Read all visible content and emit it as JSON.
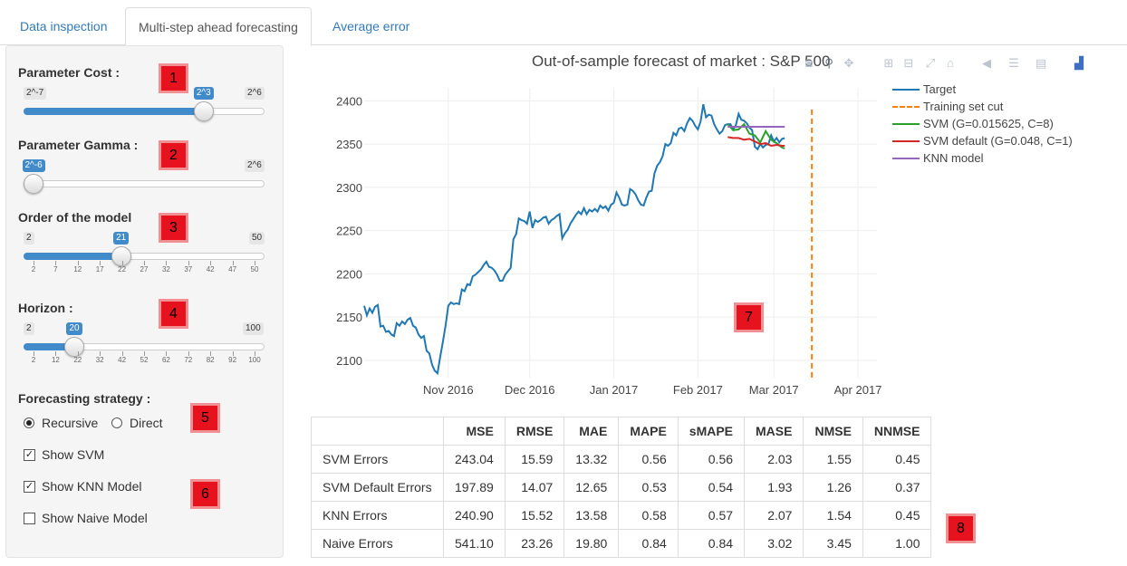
{
  "tabs": [
    {
      "label": "Data inspection"
    },
    {
      "label": "Multi-step ahead forecasting"
    },
    {
      "label": "Average error"
    }
  ],
  "sidebar": {
    "cost": {
      "label": "Parameter Cost :",
      "min": "2^-7",
      "max": "2^6",
      "value": "2^3",
      "fraction": 0.77
    },
    "gamma": {
      "label": "Parameter Gamma :",
      "min": "2^-6",
      "max": "2^6",
      "value": "2^-6",
      "fraction": 0.0
    },
    "order": {
      "label": "Order of the model",
      "min": "2",
      "max": "50",
      "value": "21",
      "fraction": 0.396,
      "ticks": [
        "2",
        "7",
        "12",
        "17",
        "22",
        "27",
        "32",
        "37",
        "42",
        "47",
        "50"
      ]
    },
    "horizon": {
      "label": "Horizon :",
      "min": "2",
      "max": "100",
      "value": "20",
      "fraction": 0.184,
      "ticks": [
        "2",
        "12",
        "22",
        "32",
        "42",
        "52",
        "62",
        "72",
        "82",
        "92",
        "100"
      ]
    },
    "strategy": {
      "label": "Forecasting strategy :",
      "options": [
        "Recursive",
        "Direct"
      ],
      "selected": "Recursive"
    },
    "show_svm": {
      "label": "Show SVM",
      "checked": true
    },
    "show_knn": {
      "label": "Show KNN Model",
      "checked": true
    },
    "show_naive": {
      "label": "Show Naive Model",
      "checked": false
    }
  },
  "badges": [
    "1",
    "2",
    "3",
    "4",
    "5",
    "6",
    "7",
    "8"
  ],
  "chart_data": {
    "type": "line",
    "title": "Out-of-sample forecast of market : S&P 500",
    "x_ticks": [
      "Nov 2016",
      "Dec 2016",
      "Jan 2017",
      "Feb 2017",
      "Mar 2017",
      "Apr 2017"
    ],
    "y_ticks": [
      "2100",
      "2150",
      "2200",
      "2250",
      "2300",
      "2350",
      "2400"
    ],
    "ylim": [
      2080,
      2415
    ],
    "x_range_days": [
      0,
      189
    ],
    "x_tick_days": [
      31,
      61,
      92,
      123,
      151,
      182
    ],
    "cut_day": 165,
    "legend_position": "top-right",
    "series": [
      {
        "name": "Target",
        "color": "#1f77b4",
        "dash": "solid",
        "points": [
          [
            0,
            2163
          ],
          [
            1,
            2152
          ],
          [
            2,
            2160
          ],
          [
            3,
            2155
          ],
          [
            4,
            2162
          ],
          [
            5,
            2164
          ],
          [
            6,
            2139
          ],
          [
            7,
            2140
          ],
          [
            8,
            2133
          ],
          [
            9,
            2134
          ],
          [
            10,
            2130
          ],
          [
            11,
            2128
          ],
          [
            12,
            2143
          ],
          [
            13,
            2140
          ],
          [
            14,
            2145
          ],
          [
            15,
            2142
          ],
          [
            16,
            2147
          ],
          [
            17,
            2149
          ],
          [
            18,
            2140
          ],
          [
            19,
            2138
          ],
          [
            20,
            2130
          ],
          [
            21,
            2126
          ],
          [
            22,
            2128
          ],
          [
            23,
            2111
          ],
          [
            24,
            2108
          ],
          [
            25,
            2095
          ],
          [
            26,
            2088
          ],
          [
            27,
            2085
          ],
          [
            28,
            2104
          ],
          [
            29,
            2121
          ],
          [
            30,
            2140
          ],
          [
            31,
            2163
          ],
          [
            32,
            2167
          ],
          [
            33,
            2165
          ],
          [
            34,
            2166
          ],
          [
            35,
            2165
          ],
          [
            36,
            2182
          ],
          [
            37,
            2180
          ],
          [
            38,
            2188
          ],
          [
            39,
            2187
          ],
          [
            40,
            2197
          ],
          [
            41,
            2199
          ],
          [
            42,
            2202
          ],
          [
            43,
            2205
          ],
          [
            44,
            2210
          ],
          [
            45,
            2214
          ],
          [
            46,
            2208
          ],
          [
            47,
            2207
          ],
          [
            48,
            2204
          ],
          [
            49,
            2199
          ],
          [
            50,
            2192
          ],
          [
            51,
            2192
          ],
          [
            52,
            2199
          ],
          [
            53,
            2203
          ],
          [
            54,
            2207
          ],
          [
            55,
            2240
          ],
          [
            56,
            2246
          ],
          [
            57,
            2264
          ],
          [
            58,
            2262
          ],
          [
            59,
            2261
          ],
          [
            60,
            2258
          ],
          [
            61,
            2272
          ],
          [
            62,
            2253
          ],
          [
            63,
            2262
          ],
          [
            64,
            2260
          ],
          [
            65,
            2262
          ],
          [
            66,
            2265
          ],
          [
            67,
            2266
          ],
          [
            68,
            2258
          ],
          [
            69,
            2262
          ],
          [
            70,
            2264
          ],
          [
            71,
            2267
          ],
          [
            72,
            2269
          ],
          [
            73,
            2241
          ],
          [
            74,
            2247
          ],
          [
            75,
            2251
          ],
          [
            76,
            2258
          ],
          [
            77,
            2263
          ],
          [
            78,
            2268
          ],
          [
            79,
            2272
          ],
          [
            80,
            2269
          ],
          [
            81,
            2276
          ],
          [
            82,
            2269
          ],
          [
            83,
            2274
          ],
          [
            84,
            2272
          ],
          [
            85,
            2275
          ],
          [
            86,
            2272
          ],
          [
            87,
            2279
          ],
          [
            88,
            2276
          ],
          [
            89,
            2278
          ],
          [
            90,
            2273
          ],
          [
            91,
            2280
          ],
          [
            92,
            2282
          ],
          [
            93,
            2294
          ],
          [
            94,
            2288
          ],
          [
            95,
            2280
          ],
          [
            96,
            2279
          ],
          [
            97,
            2280
          ],
          [
            98,
            2298
          ],
          [
            99,
            2296
          ],
          [
            100,
            2292
          ],
          [
            101,
            2285
          ],
          [
            102,
            2280
          ],
          [
            103,
            2279
          ],
          [
            104,
            2288
          ],
          [
            105,
            2295
          ],
          [
            106,
            2296
          ],
          [
            107,
            2316
          ],
          [
            108,
            2325
          ],
          [
            109,
            2329
          ],
          [
            110,
            2336
          ],
          [
            111,
            2350
          ],
          [
            112,
            2348
          ],
          [
            113,
            2351
          ],
          [
            114,
            2363
          ],
          [
            115,
            2360
          ],
          [
            116,
            2368
          ],
          [
            117,
            2369
          ],
          [
            118,
            2365
          ],
          [
            119,
            2374
          ],
          [
            120,
            2380
          ],
          [
            121,
            2377
          ],
          [
            122,
            2371
          ],
          [
            123,
            2367
          ],
          [
            124,
            2376
          ],
          [
            125,
            2396
          ],
          [
            126,
            2381
          ],
          [
            127,
            2384
          ],
          [
            128,
            2383
          ],
          [
            129,
            2373
          ],
          [
            130,
            2367
          ],
          [
            131,
            2362
          ],
          [
            132,
            2365
          ],
          [
            133,
            2372
          ],
          [
            134,
            2373
          ],
          [
            135,
            2373
          ],
          [
            136,
            2367
          ],
          [
            137,
            2372
          ],
          [
            138,
            2385
          ],
          [
            139,
            2378
          ],
          [
            140,
            2377
          ],
          [
            141,
            2374
          ],
          [
            142,
            2369
          ],
          [
            143,
            2366
          ],
          [
            144,
            2347
          ],
          [
            145,
            2344
          ],
          [
            146,
            2350
          ],
          [
            147,
            2346
          ],
          [
            148,
            2349
          ],
          [
            149,
            2350
          ],
          [
            150,
            2360
          ],
          [
            151,
            2353
          ],
          [
            152,
            2357
          ],
          [
            153,
            2352
          ],
          [
            154,
            2356
          ],
          [
            155,
            2357
          ]
        ]
      },
      {
        "name": "Training set cut",
        "color": "#ff7f0e",
        "dash": "dash"
      },
      {
        "name": "SVM (G=0.015625, C=8)",
        "color": "#2ca02c",
        "dash": "solid",
        "points": [
          [
            134,
            2373
          ],
          [
            136,
            2366
          ],
          [
            138,
            2367
          ],
          [
            140,
            2373
          ],
          [
            142,
            2362
          ],
          [
            144,
            2360
          ],
          [
            146,
            2352
          ],
          [
            148,
            2365
          ],
          [
            150,
            2355
          ],
          [
            152,
            2351
          ],
          [
            154,
            2346
          ],
          [
            155,
            2345
          ]
        ]
      },
      {
        "name": "SVM default (G=0.048, C=1)",
        "color": "#d62728",
        "dash": "solid",
        "points": [
          [
            134,
            2358
          ],
          [
            136,
            2357
          ],
          [
            138,
            2357
          ],
          [
            140,
            2355
          ],
          [
            142,
            2356
          ],
          [
            144,
            2353
          ],
          [
            146,
            2350
          ],
          [
            148,
            2351
          ],
          [
            150,
            2348
          ],
          [
            152,
            2349
          ],
          [
            154,
            2348
          ],
          [
            155,
            2348
          ]
        ]
      },
      {
        "name": "KNN model",
        "color": "#9467bd",
        "dash": "solid",
        "points": [
          [
            134,
            2370
          ],
          [
            155,
            2370
          ]
        ]
      }
    ]
  },
  "table": {
    "headers": [
      "",
      "MSE",
      "RMSE",
      "MAE",
      "MAPE",
      "sMAPE",
      "MASE",
      "NMSE",
      "NNMSE"
    ],
    "rows": [
      [
        "SVM Errors",
        "243.04",
        "15.59",
        "13.32",
        "0.56",
        "0.56",
        "2.03",
        "1.55",
        "0.45"
      ],
      [
        "SVM Default Errors",
        "197.89",
        "14.07",
        "12.65",
        "0.53",
        "0.54",
        "1.93",
        "1.26",
        "0.37"
      ],
      [
        "KNN Errors",
        "240.90",
        "15.52",
        "13.58",
        "0.58",
        "0.57",
        "2.07",
        "1.54",
        "0.45"
      ],
      [
        "Naive Errors",
        "541.10",
        "23.26",
        "19.80",
        "0.84",
        "0.84",
        "3.02",
        "3.45",
        "1.00"
      ]
    ]
  },
  "modebar_icons": [
    "camera-icon",
    "zoom-icon",
    "pan-icon",
    "zoom-in-icon",
    "zoom-out-icon",
    "autoscale-icon",
    "home-icon",
    "spike-icon",
    "hover-closest-icon",
    "hover-compare-icon",
    "plotly-logo-icon"
  ]
}
